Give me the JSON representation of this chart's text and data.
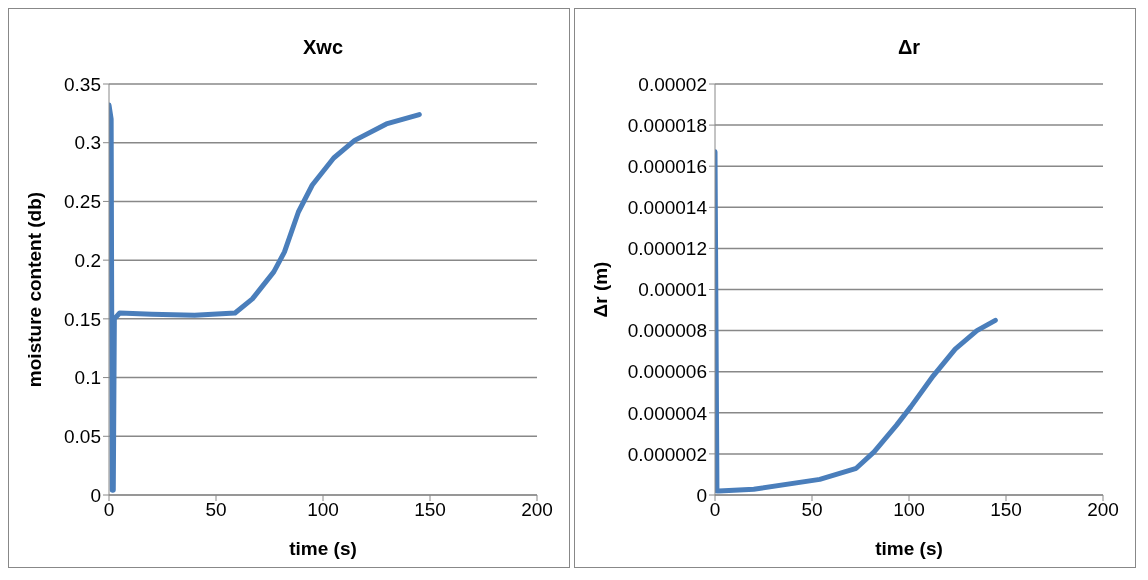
{
  "chart_data": [
    {
      "type": "line",
      "title": "Xwc",
      "xlabel": "time (s)",
      "ylabel": "moisture content (db)",
      "xlim": [
        0,
        200
      ],
      "xticks": [
        0,
        50,
        100,
        150,
        200
      ],
      "ylim": [
        0,
        0.35
      ],
      "yticks": [
        0,
        0.05,
        0.1,
        0.15,
        0.2,
        0.25,
        0.3,
        0.35
      ],
      "grid": "y",
      "legend": false,
      "marker": "none",
      "series": [
        {
          "color": "#4a7ebb",
          "x": [
            0,
            1,
            1.5,
            2,
            2.5,
            5,
            20,
            40,
            58.9,
            67,
            77,
            82,
            88.5,
            95,
            105,
            114.8,
            129.6,
            145
          ],
          "values": [
            0.332,
            0.32,
            0.004,
            0.004,
            0.15,
            0.155,
            0.154,
            0.153,
            0.155,
            0.167,
            0.19,
            0.207,
            0.241,
            0.264,
            0.287,
            0.302,
            0.316,
            0.324
          ]
        }
      ]
    },
    {
      "type": "line",
      "title": "Δr",
      "xlabel": "time (s)",
      "ylabel": "Δr (m)",
      "xlim": [
        0,
        200
      ],
      "xticks": [
        0,
        50,
        100,
        150,
        200
      ],
      "ylim": [
        0,
        2e-05
      ],
      "yticks": [
        {
          "value": 0,
          "label": "0"
        },
        {
          "value": 2e-06,
          "label": "0.000002"
        },
        {
          "value": 4e-06,
          "label": "0.000004"
        },
        {
          "value": 6e-06,
          "label": "0.000006"
        },
        {
          "value": 8e-06,
          "label": "0.000008"
        },
        {
          "value": 1e-05,
          "label": "0.00001"
        },
        {
          "value": 1.2e-05,
          "label": "0.000012"
        },
        {
          "value": 1.4e-05,
          "label": "0.000014"
        },
        {
          "value": 1.6e-05,
          "label": "0.000016"
        },
        {
          "value": 1.8e-05,
          "label": "0.000018"
        },
        {
          "value": 2e-05,
          "label": "0.00002"
        }
      ],
      "grid": "y",
      "legend": false,
      "marker": "none",
      "series": [
        {
          "color": "#4a7ebb",
          "x": [
            0,
            1,
            2,
            20,
            54,
            72.8,
            82,
            93.6,
            101,
            112.5,
            123.8,
            135,
            144.5
          ],
          "values": [
            1.67e-05,
            2e-07,
            2e-07,
            2.8e-07,
            7.6e-07,
            1.3e-06,
            2.1e-06,
            3.4e-06,
            4.3e-06,
            5.8e-06,
            7.1e-06,
            8e-06,
            8.5e-06
          ]
        }
      ]
    }
  ]
}
